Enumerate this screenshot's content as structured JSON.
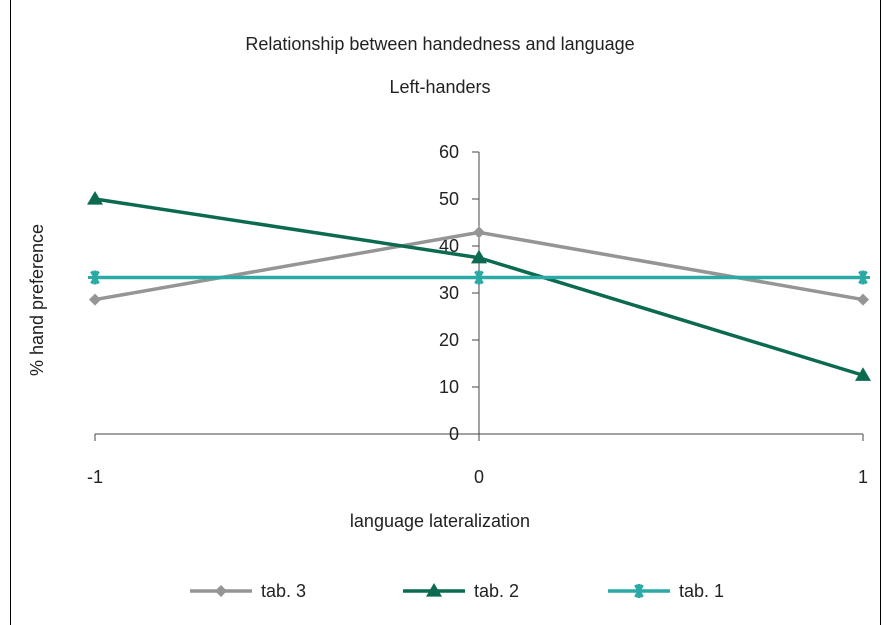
{
  "chart_data": {
    "type": "line",
    "title": "Relationship between handedness and language",
    "subtitle": "Left-handers",
    "xlabel": "language lateralization",
    "ylabel": "% hand preference",
    "x": [
      -1,
      0,
      1
    ],
    "x_tick_labels": [
      "-1",
      "0",
      "1"
    ],
    "ylim": [
      0,
      60
    ],
    "y_ticks": [
      0,
      10,
      20,
      30,
      40,
      50,
      60
    ],
    "grid": false,
    "legend_position": "bottom",
    "series": [
      {
        "name": "tab. 3",
        "values": [
          28.6,
          42.9,
          28.6
        ],
        "color": "#959595",
        "marker": "diamond"
      },
      {
        "name": "tab. 2",
        "values": [
          50,
          37.5,
          12.5
        ],
        "color": "#0b6a4f",
        "marker": "triangle"
      },
      {
        "name": "tab. 1",
        "values": [
          33.3,
          33.3,
          33.3
        ],
        "color": "#2aa9a5",
        "marker": "asterisk"
      }
    ]
  }
}
